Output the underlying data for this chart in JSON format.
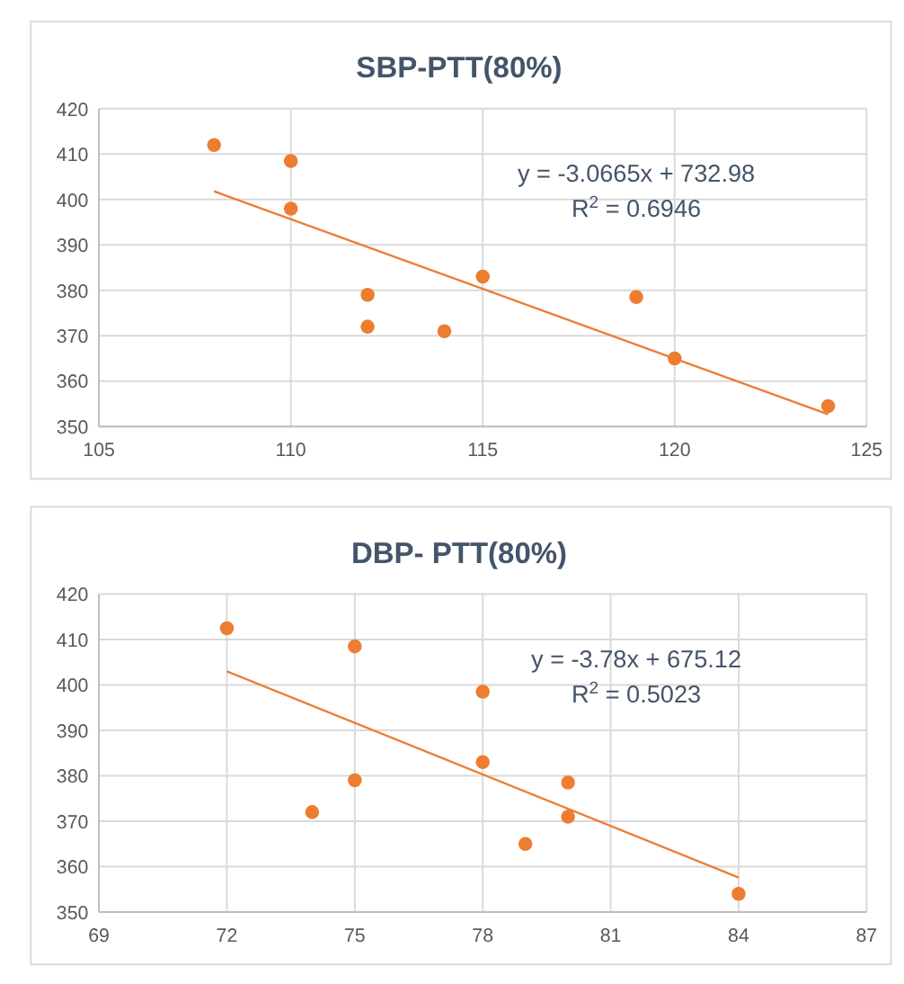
{
  "chart_data": [
    {
      "type": "scatter",
      "title": "SBP-PTT(80%)",
      "xlim": [
        105,
        125
      ],
      "xticks": [
        105,
        110,
        115,
        120,
        125
      ],
      "ylim": [
        350,
        420
      ],
      "yticks": [
        350,
        360,
        370,
        380,
        390,
        400,
        410,
        420
      ],
      "grid": true,
      "annotations": [
        "y = -3.0665x + 732.98",
        "R$^{2}$ = 0.6946"
      ],
      "series": [
        {
          "marker": "circle",
          "color": "#ed7d31",
          "x": [
            108,
            110,
            110,
            112,
            112,
            114,
            115,
            119,
            120,
            124
          ],
          "values": [
            412,
            408.5,
            398,
            379,
            372,
            371,
            383,
            378.5,
            365,
            354.5
          ]
        },
        {
          "type": "line",
          "color": "#ed7d31",
          "x": [
            108,
            124
          ],
          "values": [
            401.8,
            352.7
          ]
        }
      ]
    },
    {
      "type": "scatter",
      "title": "DBP- PTT(80%)",
      "xlim": [
        69,
        87
      ],
      "xticks": [
        69,
        72,
        75,
        78,
        81,
        84,
        87
      ],
      "ylim": [
        350,
        420
      ],
      "yticks": [
        350,
        360,
        370,
        380,
        390,
        400,
        410,
        420
      ],
      "grid": true,
      "annotations": [
        "y = -3.78x + 675.12",
        "R$^{2}$ = 0.5023"
      ],
      "series": [
        {
          "marker": "circle",
          "color": "#ed7d31",
          "x": [
            72,
            75,
            78,
            75,
            74,
            78,
            80,
            80,
            79,
            84
          ],
          "values": [
            412.5,
            408.5,
            398.5,
            379,
            372,
            383,
            378.5,
            371,
            365,
            354
          ]
        },
        {
          "type": "line",
          "color": "#ed7d31",
          "x": [
            72,
            84
          ],
          "values": [
            403,
            357.6
          ]
        }
      ]
    }
  ]
}
